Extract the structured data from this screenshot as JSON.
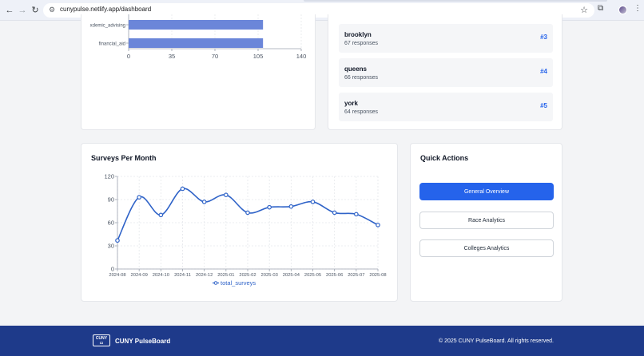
{
  "browser": {
    "url": "cunypulse.netlify.app/dashboard",
    "back_icon": "arrow-left-icon",
    "forward_icon": "arrow-right-icon",
    "reload_icon": "reload-icon"
  },
  "top_bar_chart": {
    "chart_data": {
      "type": "bar",
      "orientation": "horizontal",
      "categories": [
        "academic_advising",
        "financial_aid"
      ],
      "visible_category_labels": [
        "xdemic_advising",
        "financial_aid"
      ],
      "values": [
        109,
        109
      ],
      "xlim": [
        0,
        140
      ],
      "xticks": [
        "0",
        "35",
        "70",
        "105",
        "140"
      ],
      "color": "#6b86d9",
      "grid": true
    }
  },
  "rankings": [
    {
      "name": "brooklyn",
      "responses": "67 responses",
      "rank": "#3"
    },
    {
      "name": "queens",
      "responses": "66 responses",
      "rank": "#4"
    },
    {
      "name": "york",
      "responses": "64 responses",
      "rank": "#5"
    }
  ],
  "surveys": {
    "title": "Surveys Per Month",
    "chart_data": {
      "type": "line",
      "x": [
        "2024-08",
        "2024-09",
        "2024-10",
        "2024-11",
        "2024-12",
        "2025-01",
        "2025-02",
        "2025-03",
        "2025-04",
        "2025-05",
        "2025-06",
        "2025-07",
        "2025-08"
      ],
      "yticks": [
        "0",
        "30",
        "60",
        "90",
        "120"
      ],
      "ylim": [
        0,
        120
      ],
      "series": [
        {
          "name": "total_surveys",
          "values": [
            37,
            93,
            70,
            104,
            87,
            96,
            73,
            80,
            81,
            87,
            73,
            71,
            57
          ]
        }
      ],
      "color": "#2f63c8",
      "grid": true,
      "legend": "bottom"
    }
  },
  "quick_actions": {
    "title": "Quick Actions",
    "buttons": [
      "General Overview",
      "Race Analytics",
      "Colleges Analytics"
    ]
  },
  "footer": {
    "logo_lines": [
      "CUNY",
      "▭"
    ],
    "brand": "CUNY PulseBoard",
    "copyright": "© 2025 CUNY PulseBoard. All rights reserved."
  }
}
